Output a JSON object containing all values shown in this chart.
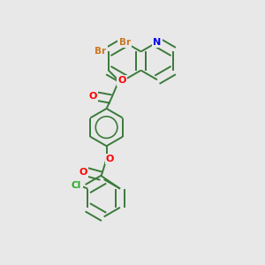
{
  "background_color": "#e8e8e8",
  "bond_color": "#3a7a3a",
  "atom_colors": {
    "Br": "#cc7722",
    "O": "#ff0000",
    "N": "#0000ee",
    "Cl": "#22aa22",
    "C": "#3a7a3a"
  },
  "figsize": [
    3.0,
    3.0
  ],
  "dpi": 100,
  "lw": 1.4,
  "r": 0.072
}
